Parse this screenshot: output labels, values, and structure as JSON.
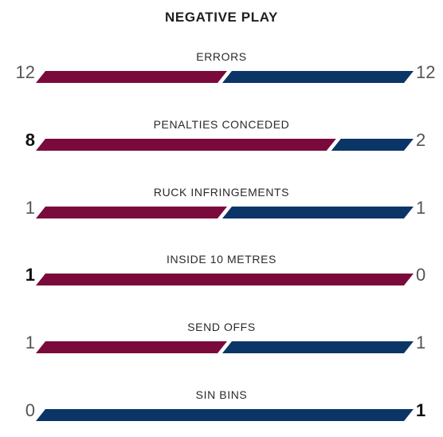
{
  "title": "NEGATIVE PLAY",
  "colors": {
    "home": "#7a0a3c",
    "away": "#0b3567"
  },
  "stats": [
    {
      "label": "ERRORS",
      "home": 12,
      "away": 12,
      "home_display": "12",
      "away_display": "12"
    },
    {
      "label": "PENALTIES CONCEDED",
      "home": 8,
      "away": 2,
      "home_display": "8",
      "away_display": "2"
    },
    {
      "label": "RUCK INFRINGEMENTS",
      "home": 1,
      "away": 1,
      "home_display": "1",
      "away_display": "1"
    },
    {
      "label": "INSIDE 10 METRES",
      "home": 1,
      "away": 0,
      "home_display": "1",
      "away_display": "0"
    },
    {
      "label": "SEND OFFS",
      "home": 1,
      "away": 1,
      "home_display": "1",
      "away_display": "1"
    },
    {
      "label": "SIN BINS",
      "home": 0,
      "away": 1,
      "home_display": "0",
      "away_display": "1"
    }
  ]
}
